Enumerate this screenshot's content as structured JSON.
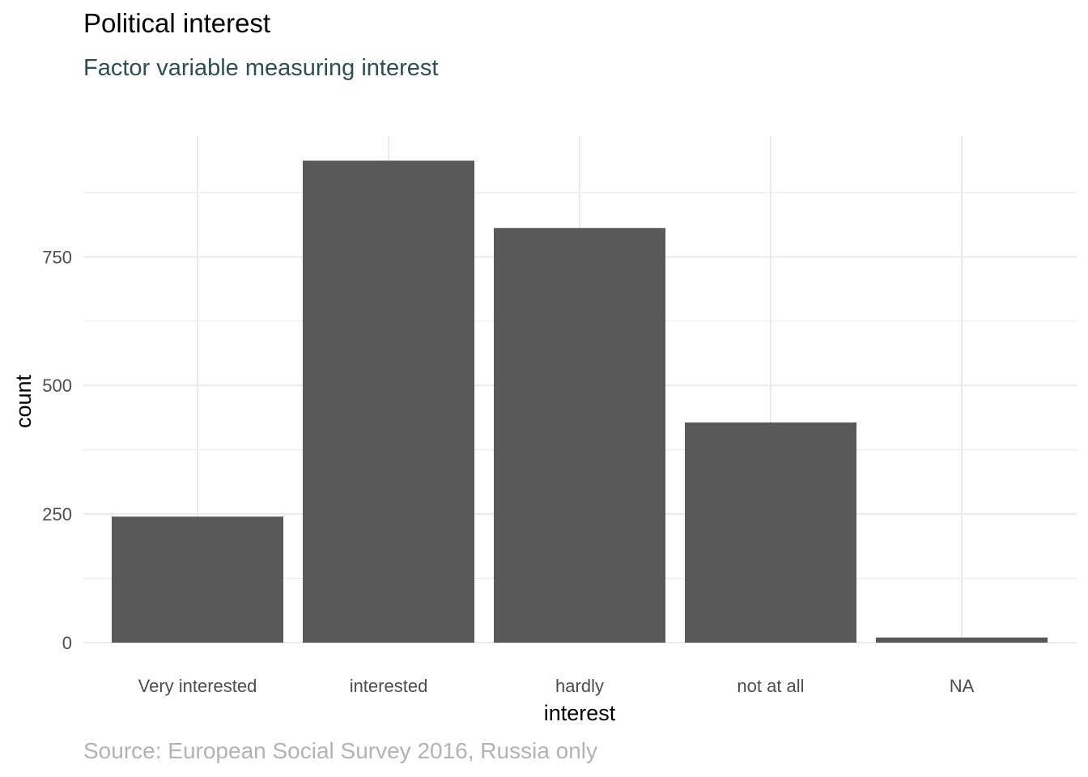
{
  "chart_data": {
    "type": "bar",
    "title": "Political interest",
    "subtitle": "Factor variable measuring interest",
    "caption": "Source: European Social Survey 2016, Russia only",
    "xlabel": "interest",
    "ylabel": "count",
    "categories": [
      "Very interested",
      "interested",
      "hardly",
      "not at all",
      "NA"
    ],
    "values": [
      245,
      937,
      806,
      428,
      10
    ],
    "ylim": [
      0,
      985
    ],
    "yticks": [
      0,
      250,
      500,
      750
    ],
    "ytick_labels": [
      "0",
      "250",
      "500",
      "750"
    ],
    "grid": true,
    "bar_color": "#595959",
    "grid_color": "#ebebeb"
  }
}
